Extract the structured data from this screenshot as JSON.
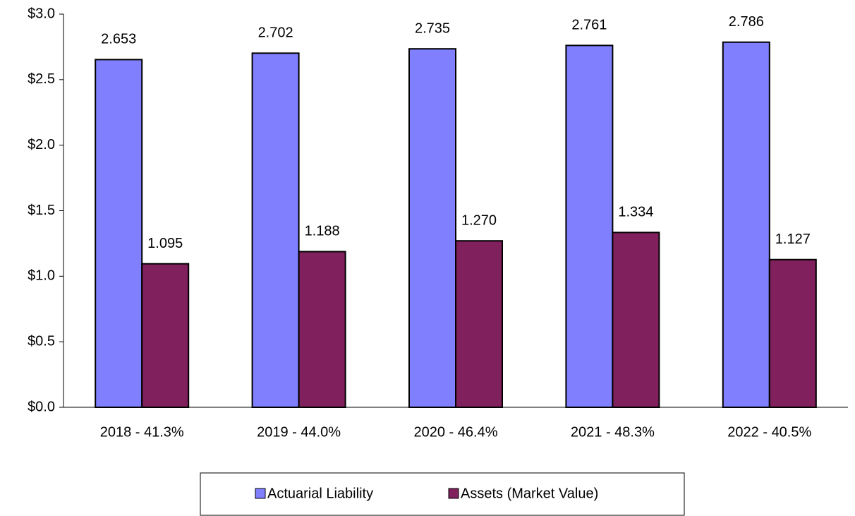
{
  "chart_data": {
    "type": "bar",
    "categories": [
      "2018 - 41.3%",
      "2019 - 44.0%",
      "2020 - 46.4%",
      "2021 - 48.3%",
      "2022 - 40.5%"
    ],
    "series": [
      {
        "name": "Actuarial Liability",
        "color": "#8080ff",
        "values": [
          2.653,
          2.702,
          2.735,
          2.761,
          2.786
        ],
        "value_labels": [
          "2.653",
          "2.702",
          "2.735",
          "2.761",
          "2.786"
        ]
      },
      {
        "name": "Assets (Market Value)",
        "color": "#80205c",
        "values": [
          1.095,
          1.188,
          1.27,
          1.334,
          1.127
        ],
        "value_labels": [
          "1.095",
          "1.188",
          "1.270",
          "1.334",
          "1.127"
        ]
      }
    ],
    "ylim": [
      0,
      3
    ],
    "yticks": [
      {
        "value": 0,
        "label": "$0.0"
      },
      {
        "value": 0.5,
        "label": "$0.5"
      },
      {
        "value": 1,
        "label": "$1.0"
      },
      {
        "value": 1.5,
        "label": "$1.5"
      },
      {
        "value": 2,
        "label": "$2.0"
      },
      {
        "value": 2.5,
        "label": "$2.5"
      },
      {
        "value": 3,
        "label": "$3.0"
      }
    ],
    "grid": false,
    "legend": "bottom"
  }
}
